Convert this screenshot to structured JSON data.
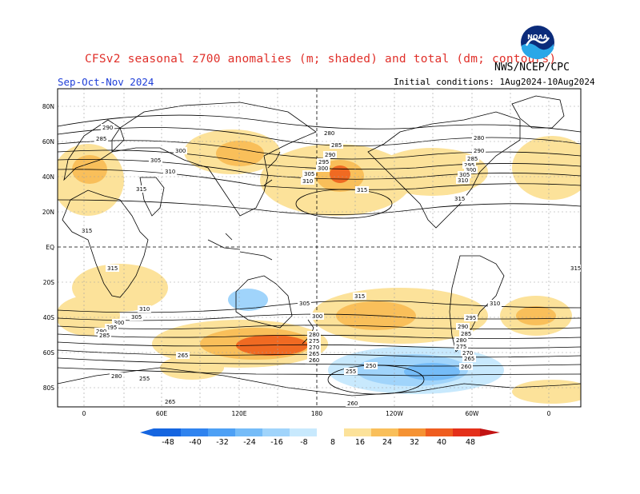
{
  "header": {
    "title": "CFSv2 seasonal z700 anomalies (m; shaded) and total (dm; contours)",
    "agency": "NWS/NCEP/CPC",
    "season": "Sep-Oct-Nov 2024",
    "initial_conditions": "Initial conditions: 1Aug2024-10Aug2024",
    "logo_text": "NOAA"
  },
  "map": {
    "lat_labels": [
      "80N",
      "60N",
      "40N",
      "20N",
      "EQ",
      "20S",
      "40S",
      "60S",
      "80S"
    ],
    "lon_labels": [
      "0",
      "60E",
      "120E",
      "180",
      "120W",
      "60W",
      "0"
    ],
    "contour_labels": [
      "290",
      "285",
      "300",
      "305",
      "310",
      "315",
      "315",
      "280",
      "285",
      "290",
      "295",
      "300",
      "305",
      "310",
      "315",
      "280",
      "285",
      "290",
      "295",
      "300",
      "305",
      "310",
      "315",
      "315",
      "315",
      "310",
      "305",
      "300",
      "295",
      "290",
      "285",
      "280",
      "275",
      "270",
      "265",
      "260",
      "255",
      "250",
      "315",
      "310",
      "305",
      "300",
      "295",
      "290",
      "285",
      "280",
      "275",
      "270",
      "265",
      "260",
      "265",
      "255",
      "280",
      "265",
      "260"
    ],
    "colors": {
      "land": "#000000",
      "ocean": "#ffffff",
      "grid": "#a0a0a0"
    }
  },
  "colorbar": {
    "ticks": [
      "-48",
      "-40",
      "-32",
      "-24",
      "-16",
      "-8",
      "8",
      "16",
      "24",
      "32",
      "40",
      "48"
    ],
    "colors": [
      "#1565e0",
      "#2f83ef",
      "#4da0f5",
      "#75bcf8",
      "#a0d4fb",
      "#c8e9fd",
      "#ffffff",
      "#fce29a",
      "#f9bf5a",
      "#f59233",
      "#ef5d1f",
      "#e4301a",
      "#c21313"
    ]
  }
}
